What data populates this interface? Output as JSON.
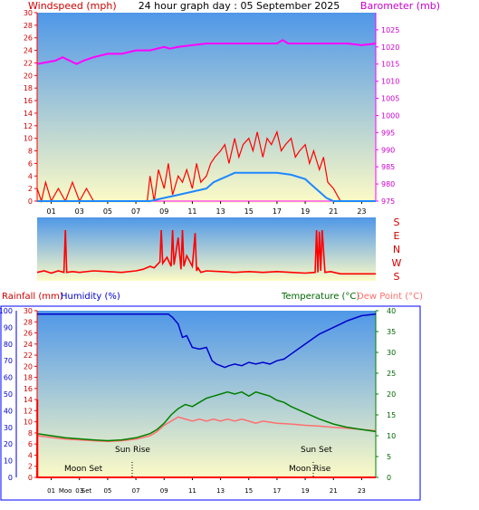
{
  "header": {
    "title": "24 hour graph day : 05 September 2025",
    "left_axis_label": "Windspeed (mph)",
    "right_axis_label": "Barometer (mb)"
  },
  "mid": {
    "compass_labels": [
      "S",
      "E",
      "N",
      "W",
      "S"
    ]
  },
  "bottom": {
    "rain_label": "Rainfall (mm)",
    "humidity_label": "Humidity (%)",
    "temp_label": "Temperature (°C)",
    "dew_label": "Dew Point (°C)",
    "annotations": {
      "sun_rise": "Sun Rise",
      "sun_set": "Sun Set",
      "moon_set": "Moon Set",
      "moon_rise": "Moon Rise"
    },
    "hour_ticks_bottom": [
      "01",
      "Moo",
      "03",
      "Set",
      "05",
      "07",
      "09",
      "11",
      "13",
      "15",
      "17",
      "19",
      "21",
      "23"
    ]
  },
  "colors": {
    "frame_bg": "#ffffff",
    "sky_top": "#4f97e8",
    "sky_bottom": "#fdfbc6",
    "wind": "#ff0000",
    "wind_avg": "#1e88ff",
    "barometer": "#ff00ff",
    "humidity": "#0000cc",
    "temperature": "#008000",
    "dewpoint": "#ff6f6f",
    "rain": "#ff0000"
  },
  "chart_data": [
    {
      "type": "line",
      "title": "24 hour graph day : 05 September 2025",
      "xlabel": "",
      "ylabel": "Windspeed (mph)",
      "x_ticks": [
        "01",
        "03",
        "05",
        "07",
        "09",
        "11",
        "13",
        "15",
        "17",
        "19",
        "21",
        "23"
      ],
      "xlim": [
        0,
        24
      ],
      "ylim": [
        0,
        30
      ],
      "y_ticks": [
        0,
        2,
        4,
        6,
        8,
        10,
        12,
        14,
        16,
        18,
        20,
        22,
        24,
        26,
        28,
        30
      ],
      "y2label": "Barometer (mb)",
      "y2lim": [
        975,
        1030
      ],
      "y2_ticks": [
        975,
        980,
        985,
        990,
        995,
        1000,
        1005,
        1010,
        1015,
        1020,
        1025
      ],
      "series": [
        {
          "name": "Windspeed (mph)",
          "axis": "left",
          "x": [
            0,
            0.3,
            0.6,
            1.0,
            1.5,
            2.0,
            2.5,
            3.0,
            3.5,
            4.0,
            5.0,
            6.0,
            7.0,
            7.8,
            8.0,
            8.3,
            8.6,
            9.0,
            9.3,
            9.6,
            10.0,
            10.3,
            10.6,
            11.0,
            11.3,
            11.6,
            12.0,
            12.3,
            12.6,
            13.0,
            13.3,
            13.6,
            14.0,
            14.3,
            14.6,
            15.0,
            15.3,
            15.6,
            16.0,
            16.3,
            16.6,
            17.0,
            17.3,
            17.6,
            18.0,
            18.3,
            18.6,
            19.0,
            19.3,
            19.6,
            20.0,
            20.3,
            20.6,
            21.0,
            21.5,
            22.0,
            23.0,
            24.0
          ],
          "y": [
            2,
            0,
            3,
            0,
            2,
            0,
            3,
            0,
            2,
            0,
            0,
            0,
            0,
            0,
            4,
            0,
            5,
            2,
            6,
            1,
            4,
            3,
            5,
            2,
            6,
            3,
            4,
            6,
            7,
            8,
            9,
            6,
            10,
            7,
            9,
            10,
            8,
            11,
            7,
            10,
            9,
            11,
            8,
            9,
            10,
            7,
            8,
            9,
            6,
            8,
            5,
            7,
            3,
            2,
            0,
            0,
            0,
            0
          ]
        },
        {
          "name": "Wind average",
          "axis": "left",
          "x": [
            0,
            8.0,
            9.0,
            10.0,
            11.0,
            12.0,
            12.5,
            13.0,
            13.5,
            14.0,
            15.0,
            16.0,
            17.0,
            18.0,
            19.0,
            19.5,
            20.0,
            20.5,
            21.0,
            24.0
          ],
          "y": [
            0,
            0,
            0.5,
            1,
            1.5,
            2,
            3,
            3.5,
            4,
            4.5,
            4.5,
            4.5,
            4.5,
            4.2,
            3.5,
            2.5,
            1.5,
            0.5,
            0,
            0
          ]
        },
        {
          "name": "Barometer (mb)",
          "axis": "right",
          "x": [
            0,
            1.3,
            1.8,
            2.3,
            2.8,
            3.3,
            4.0,
            5.0,
            6.0,
            7.0,
            8.0,
            9.0,
            9.4,
            10.0,
            11.0,
            12.0,
            13.0,
            14.0,
            15.0,
            16.0,
            17.0,
            17.4,
            17.8,
            18.5,
            19.0,
            20.0,
            21.0,
            22.0,
            23.0,
            24.0
          ],
          "y": [
            1015,
            1016,
            1017,
            1016,
            1015,
            1016,
            1017,
            1018,
            1018,
            1019,
            1019,
            1020,
            1019.5,
            1020,
            1020.5,
            1021,
            1021,
            1021,
            1021,
            1021,
            1021,
            1022,
            1021,
            1021,
            1021,
            1021,
            1021,
            1021,
            1020.5,
            1021
          ]
        }
      ]
    },
    {
      "type": "line",
      "title": "",
      "ylabel": "",
      "y_categories": [
        "S",
        "E",
        "N",
        "W",
        "S"
      ],
      "ylim": [
        0,
        360
      ],
      "xlim": [
        0,
        24
      ],
      "series": [
        {
          "name": "Wind direction",
          "x": [
            0,
            0.5,
            1.0,
            1.5,
            1.9,
            2.0,
            2.1,
            2.5,
            3.0,
            4.0,
            5.0,
            6.0,
            7.0,
            7.5,
            8.0,
            8.3,
            8.7,
            8.8,
            8.9,
            9.2,
            9.5,
            9.6,
            9.7,
            10.0,
            10.2,
            10.3,
            10.4,
            10.6,
            11.0,
            11.2,
            11.3,
            11.4,
            11.6,
            12.0,
            13.0,
            14.0,
            15.0,
            16.0,
            17.0,
            18.0,
            19.0,
            19.7,
            19.8,
            19.9,
            20.0,
            20.1,
            20.2,
            20.4,
            20.8,
            21.5,
            24.0
          ],
          "y": [
            20,
            30,
            15,
            30,
            20,
            300,
            20,
            25,
            20,
            30,
            25,
            20,
            30,
            40,
            60,
            50,
            90,
            300,
            80,
            120,
            60,
            300,
            70,
            250,
            40,
            300,
            60,
            130,
            60,
            280,
            30,
            50,
            20,
            30,
            25,
            20,
            25,
            20,
            25,
            20,
            15,
            20,
            300,
            20,
            290,
            30,
            300,
            20,
            25,
            10,
            10
          ]
        }
      ]
    },
    {
      "type": "line",
      "title": "",
      "xlabel": "",
      "x_ticks": [
        "01",
        "03",
        "05",
        "07",
        "09",
        "11",
        "13",
        "15",
        "17",
        "19",
        "21",
        "23"
      ],
      "xlim": [
        0,
        24
      ],
      "ylabel": "Rainfall (mm)",
      "ylim": [
        0,
        30
      ],
      "y_ticks": [
        0,
        2,
        4,
        6,
        8,
        10,
        12,
        14,
        16,
        18,
        20,
        22,
        24,
        26,
        28,
        30
      ],
      "y_humidity_label": "Humidity (%)",
      "y_humidity_lim": [
        0,
        100
      ],
      "y_humidity_ticks": [
        0,
        10,
        20,
        30,
        40,
        50,
        60,
        70,
        80,
        90,
        100
      ],
      "y2label": "Temperature (°C)Dew Point (°C)",
      "y2lim": [
        0,
        40
      ],
      "y2_ticks": [
        0,
        5,
        10,
        15,
        20,
        25,
        30,
        35,
        40
      ],
      "series": [
        {
          "name": "Humidity (%)",
          "axis": "humidity",
          "x": [
            0,
            2,
            4,
            6,
            8,
            9.0,
            9.3,
            9.6,
            10.0,
            10.3,
            10.6,
            11.0,
            11.5,
            12.0,
            12.4,
            12.7,
            13.0,
            13.3,
            13.6,
            14.0,
            14.5,
            15.0,
            15.5,
            16.0,
            16.5,
            17.0,
            17.5,
            18.0,
            18.5,
            19.0,
            19.5,
            20.0,
            21.0,
            22.0,
            23.0,
            24.0
          ],
          "y": [
            98,
            98,
            98,
            98,
            98,
            98,
            98,
            96,
            92,
            84,
            85,
            78,
            77,
            78,
            70,
            68,
            67,
            66,
            67,
            68,
            67,
            69,
            68,
            69,
            68,
            70,
            71,
            74,
            77,
            80,
            83,
            86,
            90,
            94,
            97,
            98
          ]
        },
        {
          "name": "Temperature (°C)",
          "axis": "right",
          "x": [
            0,
            2,
            4,
            5,
            6,
            7,
            8,
            8.5,
            9.0,
            9.5,
            10.0,
            10.5,
            11.0,
            11.5,
            12.0,
            12.5,
            13.0,
            13.5,
            14.0,
            14.5,
            15.0,
            15.5,
            16.0,
            16.5,
            17.0,
            17.5,
            18.0,
            19.0,
            20.0,
            21.0,
            22.0,
            23.0,
            24.0
          ],
          "y": [
            10.5,
            9.5,
            9,
            8.8,
            9,
            9.5,
            10.5,
            11.5,
            13,
            15,
            16.5,
            17.5,
            17,
            18,
            19,
            19.5,
            20,
            20.5,
            20,
            20.5,
            19.5,
            20.5,
            20,
            19.5,
            18.5,
            18,
            17,
            15.5,
            14,
            12.8,
            12,
            11.5,
            11
          ]
        },
        {
          "name": "Dew Point (°C)",
          "axis": "right",
          "x": [
            0,
            2,
            4,
            5,
            6,
            7,
            8,
            8.5,
            9.0,
            9.5,
            10.0,
            10.5,
            11.0,
            11.5,
            12.0,
            12.5,
            13.0,
            13.5,
            14.0,
            14.5,
            15.0,
            15.5,
            16.0,
            17.0,
            18.0,
            19.0,
            20.0,
            21.0,
            22.0,
            23.0,
            24.0
          ],
          "y": [
            10,
            9.2,
            8.8,
            8.6,
            8.8,
            9.2,
            10,
            11,
            12.5,
            13.5,
            14.5,
            14,
            13.5,
            14,
            13.5,
            14,
            13.5,
            14,
            13.5,
            14,
            13.5,
            13,
            13.5,
            13,
            12.8,
            12.5,
            12.3,
            12,
            11.8,
            11.5,
            11.2
          ]
        },
        {
          "name": "Rainfall (mm)",
          "axis": "left",
          "x": [
            0,
            0.01,
            0.02,
            24
          ],
          "y": [
            0,
            14,
            0,
            0
          ]
        }
      ]
    }
  ]
}
